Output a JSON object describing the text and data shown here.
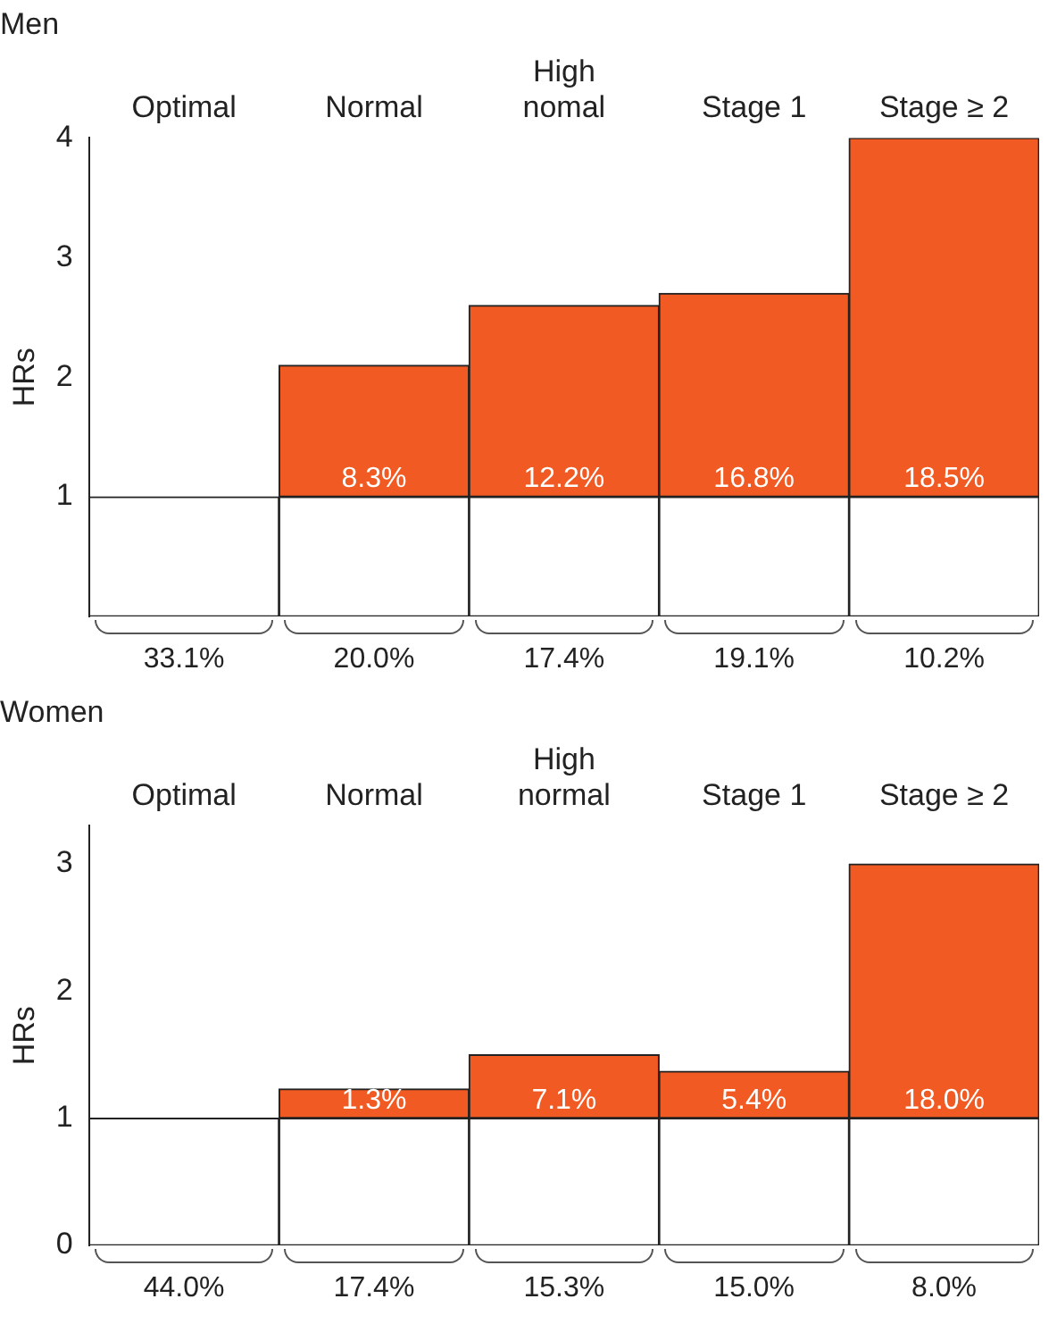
{
  "chart_data": [
    {
      "type": "bar",
      "title": "Men",
      "ylabel": "HRs",
      "categories": [
        "Optimal",
        "Normal",
        "High\nnomal",
        "Stage 1",
        "Stage ≥ 2"
      ],
      "stacked": true,
      "ylim": [
        0,
        4
      ],
      "yticks": [
        1,
        2,
        3,
        4
      ],
      "grid": false,
      "legend": false,
      "series": [
        {
          "color": "#ffffff",
          "values": [
            1,
            1,
            1,
            1,
            1
          ]
        },
        {
          "color": "#f15a22",
          "values": [
            0,
            1.1,
            1.6,
            1.7,
            3.0
          ]
        }
      ],
      "annotations": [
        "33.1%",
        "20.0%",
        "17.4%",
        "19.1%",
        "10.2%",
        {
          "text": "8.3%",
          "x": "Normal",
          "y": 1
        },
        {
          "text": "12.2%",
          "x": "High\nnomal",
          "y": 1
        },
        {
          "text": "16.8%",
          "x": "Stage 1",
          "y": 1
        },
        {
          "text": "18.5%",
          "x": "Stage ≥ 2",
          "y": 1
        }
      ]
    },
    {
      "type": "bar",
      "title": "Women",
      "ylabel": "HRs",
      "categories": [
        "Optimal",
        "Normal",
        "High\nnormal",
        "Stage 1",
        "Stage ≥ 2"
      ],
      "stacked": true,
      "ylim": [
        0,
        3.3
      ],
      "yticks": [
        0,
        1,
        2,
        3
      ],
      "grid": false,
      "legend": false,
      "series": [
        {
          "color": "#ffffff",
          "values": [
            1,
            1,
            1,
            1,
            1
          ]
        },
        {
          "color": "#f15a22",
          "values": [
            0,
            0.23,
            0.5,
            0.37,
            2.0
          ]
        }
      ],
      "annotations": [
        "44.0%",
        "17.4%",
        "15.3%",
        "15.0%",
        "8.0%",
        {
          "text": "1.3%",
          "x": "Normal",
          "y": 1
        },
        {
          "text": "7.1%",
          "x": "High\nnormal",
          "y": 1
        },
        {
          "text": "5.4%",
          "x": "Stage 1",
          "y": 1
        },
        {
          "text": "18.0%",
          "x": "Stage ≥ 2",
          "y": 1
        }
      ]
    }
  ]
}
